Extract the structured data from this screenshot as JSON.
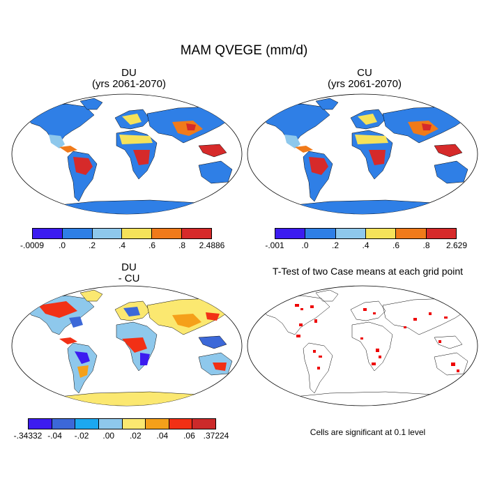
{
  "figure": {
    "title": "MAM QVEGE (mm/d)",
    "panels": [
      {
        "id": "du",
        "title_line1": "DU",
        "title_line2": "(yrs 2061-2070)",
        "colorbar_colors": [
          "#3c1cf0",
          "#2f7fe6",
          "#8ec8ec",
          "#f5e25a",
          "#f07a1a",
          "#d62a2a"
        ],
        "colorbar_labels": [
          "-.0009",
          ".0",
          ".2",
          ".4",
          ".6",
          ".8",
          "2.4886"
        ]
      },
      {
        "id": "cu",
        "title_line1": "CU",
        "title_line2": "(yrs 2061-2070)",
        "colorbar_colors": [
          "#3c1cf0",
          "#2f7fe6",
          "#8ec8ec",
          "#f5e25a",
          "#f07a1a",
          "#d62a2a"
        ],
        "colorbar_labels": [
          "-.001",
          ".0",
          ".2",
          ".4",
          ".6",
          ".8",
          "2.629"
        ]
      },
      {
        "id": "diff",
        "title_line1": "DU",
        "title_line2": "- CU",
        "colorbar_colors": [
          "#3c1cf0",
          "#3c68d8",
          "#1ca8f0",
          "#8ec8ec",
          "#fbe870",
          "#f5a01a",
          "#f23015",
          "#cc2a2a"
        ],
        "colorbar_labels": [
          "-.34332",
          "-.04",
          "-.02",
          ".00",
          ".02",
          ".04",
          ".06",
          ".37224"
        ]
      },
      {
        "id": "ttest",
        "title": "T-Test of two Case means at each grid point",
        "note": "Cells are significant at 0.1 level"
      }
    ]
  }
}
